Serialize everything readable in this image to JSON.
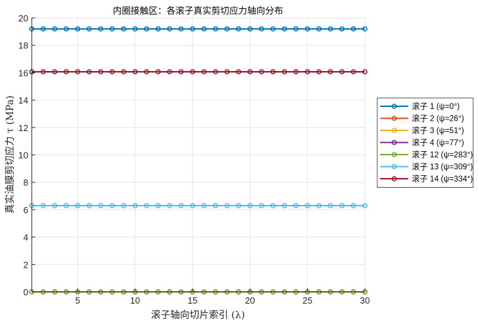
{
  "chart_data": {
    "type": "line",
    "title": "内圈接触区：各滚子真实剪切应力轴向分布",
    "xlabel": "滚子轴向切片索引 (λ)",
    "ylabel": "真实油膜剪切应力 τ (MPa)",
    "xlim": [
      1,
      30
    ],
    "ylim": [
      0,
      20
    ],
    "xticks": [
      5,
      10,
      15,
      20,
      25,
      30
    ],
    "yticks": [
      0,
      2,
      4,
      6,
      8,
      10,
      12,
      14,
      16,
      18,
      20
    ],
    "grid": true,
    "legend_placement": "outside-right",
    "x": [
      1,
      2,
      3,
      4,
      5,
      6,
      7,
      8,
      9,
      10,
      11,
      12,
      13,
      14,
      15,
      16,
      17,
      18,
      19,
      20,
      21,
      22,
      23,
      24,
      25,
      26,
      27,
      28,
      29,
      30
    ],
    "series": [
      {
        "name": "滚子 1 (ψ=0°)",
        "color": "#0072BD",
        "constant": 19.2
      },
      {
        "name": "滚子 2 (ψ=26°)",
        "color": "#D95319",
        "constant": 0
      },
      {
        "name": "滚子 3 (ψ=51°)",
        "color": "#EDB120",
        "constant": 0
      },
      {
        "name": "滚子 4 (ψ=77°)",
        "color": "#7E2F8E",
        "constant": 0
      },
      {
        "name": "滚子 12 (ψ=283°)",
        "color": "#77AC30",
        "constant": 0
      },
      {
        "name": "滚子 13 (ψ=309°)",
        "color": "#4DBEEE",
        "constant": 6.3
      },
      {
        "name": "滚子 14 (ψ=334°)",
        "color": "#A2142F",
        "constant": 16.07
      }
    ]
  }
}
